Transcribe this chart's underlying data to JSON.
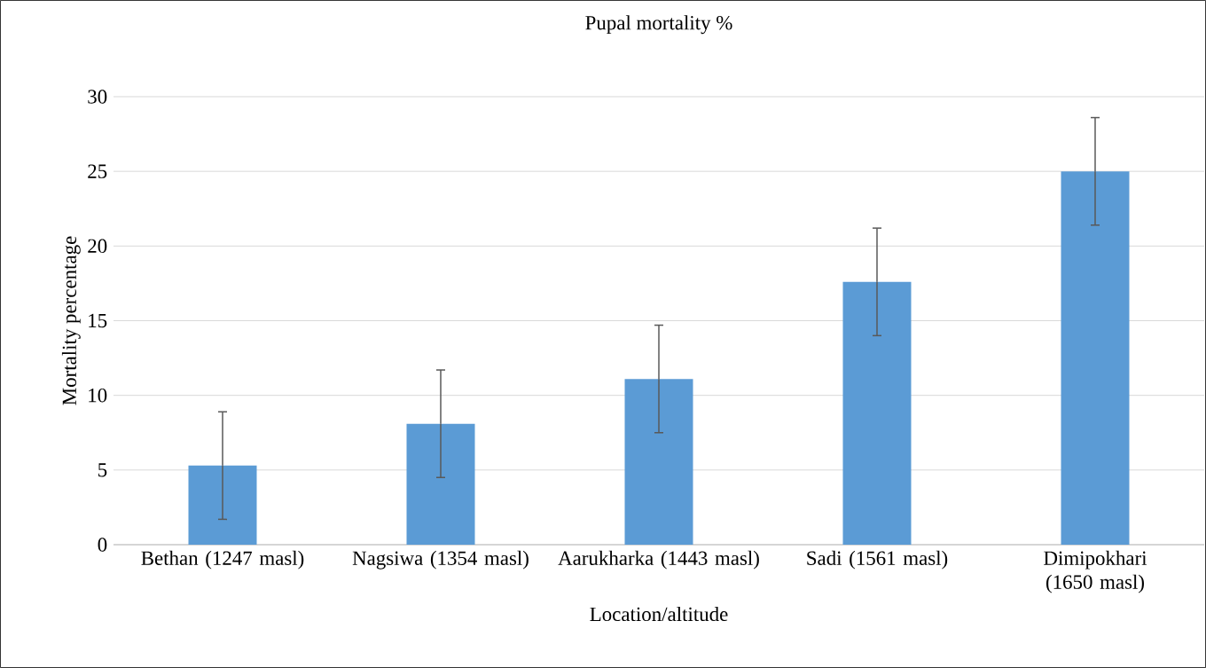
{
  "chart_data": {
    "type": "bar",
    "title": "Pupal mortality %",
    "xlabel": "Location/altitude",
    "ylabel": "Mortality percentage",
    "categories": [
      "Bethan (1247 masl)",
      "Nagsiwa (1354 masl)",
      "Aarukharka (1443 masl)",
      "Sadi (1561 masl)",
      "Dimipokhari (1650 masl)"
    ],
    "values": [
      5.3,
      8.1,
      11.1,
      17.6,
      25.0
    ],
    "errors": [
      3.6,
      3.6,
      3.6,
      3.6,
      3.6
    ],
    "color": "#5b9bd5",
    "ylim": [
      0,
      30
    ],
    "yticks": [
      0,
      5,
      10,
      15,
      20,
      25,
      30
    ],
    "grid": "y"
  }
}
